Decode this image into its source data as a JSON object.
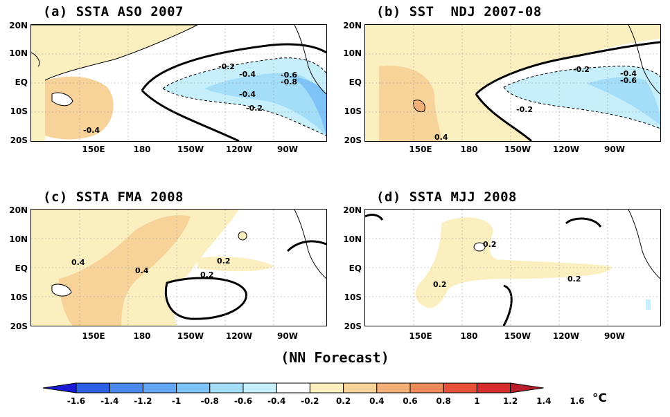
{
  "panels": [
    {
      "id": "a",
      "title": "(a) SSTA ASO 2007"
    },
    {
      "id": "b",
      "title": "(b) SST  NDJ 2007-08"
    },
    {
      "id": "c",
      "title": "(c) SSTA FMA 2008"
    },
    {
      "id": "d",
      "title": "(d) SSTA MJJ 2008"
    }
  ],
  "lat_labels": [
    "20N",
    "10N",
    "EQ",
    "10S",
    "20S"
  ],
  "lon_labels": [
    "150E",
    "180",
    "150W",
    "120W",
    "90W"
  ],
  "contour_labels": {
    "a": [
      "-0.2",
      "-0.4",
      "-0.6",
      "-0.8",
      "-0.4",
      "-0.2",
      "-0.4"
    ],
    "b": [
      "-0.2",
      "-0.4",
      "-0.6",
      "-0.2",
      "0.4"
    ],
    "c": [
      "0.4",
      "0.4",
      "0.2",
      "0.2"
    ],
    "d": [
      "0.2",
      "0.2",
      "0.2"
    ]
  },
  "footer": "(NN Forecast)",
  "colorbar": {
    "labels": [
      "-1.6",
      "-1.4",
      "-1.2",
      "-1",
      "-0.8",
      "-0.6",
      "-0.4",
      "-0.2",
      "0.2",
      "0.4",
      "0.6",
      "0.8",
      "1",
      "1.2",
      "1.4",
      "1.6"
    ],
    "colors": [
      "#1c1cd6",
      "#2d5ee8",
      "#4a88f0",
      "#63a6f4",
      "#7dc3f8",
      "#a3ddf7",
      "#c6eefb",
      "#ffffff",
      "#fbefc0",
      "#f7d39a",
      "#f2b078",
      "#ee8858",
      "#e8503a",
      "#d62c2c",
      "#b81e2c"
    ],
    "unit": "°C"
  }
}
